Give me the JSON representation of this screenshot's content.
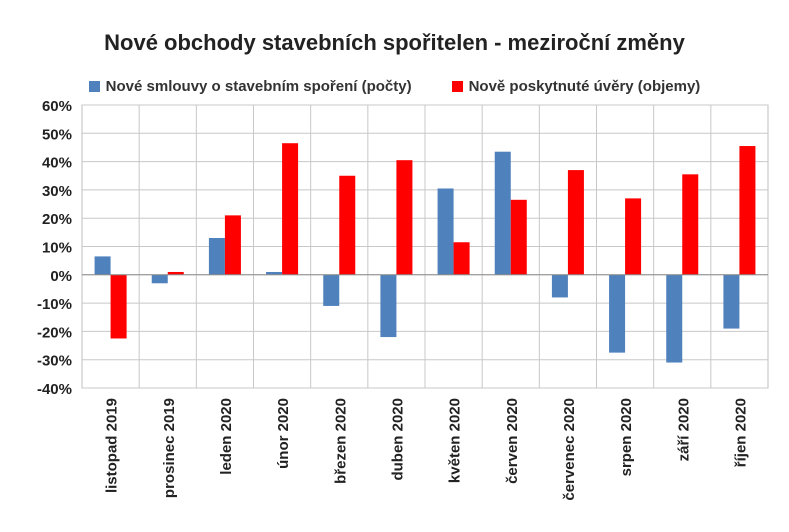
{
  "chart_data": {
    "type": "bar",
    "title": "Nové obchody stavebních spořitelen - meziroční změny",
    "xlabel": "",
    "ylabel": "",
    "ylim": [
      -40,
      60
    ],
    "yticks": [
      -40,
      -30,
      -20,
      -10,
      0,
      10,
      20,
      30,
      40,
      50,
      60
    ],
    "ytick_labels": [
      "-40%",
      "-30%",
      "-20%",
      "-10%",
      "0%",
      "10%",
      "20%",
      "30%",
      "40%",
      "50%",
      "60%"
    ],
    "grid": true,
    "legend_position": "top",
    "categories": [
      "listopad 2019",
      "prosinec 2019",
      "leden 2020",
      "únor 2020",
      "březen 2020",
      "duben 2020",
      "květen 2020",
      "červen 2020",
      "červenec 2020",
      "srpen 2020",
      "září 2020",
      "říjen 2020"
    ],
    "series": [
      {
        "name": "Nové smlouvy o stavebním spoření (počty)",
        "color": "#4F81BD",
        "values": [
          6.5,
          -3,
          13,
          1,
          -11,
          -22,
          30.5,
          43.5,
          -8,
          -27.5,
          -31,
          -19
        ]
      },
      {
        "name": "Nově poskytnuté úvěry (objemy)",
        "color": "#FF0000",
        "values": [
          -22.5,
          1,
          21,
          46.5,
          35,
          40.5,
          11.5,
          26.5,
          37,
          27,
          35.5,
          45.5
        ]
      }
    ]
  }
}
